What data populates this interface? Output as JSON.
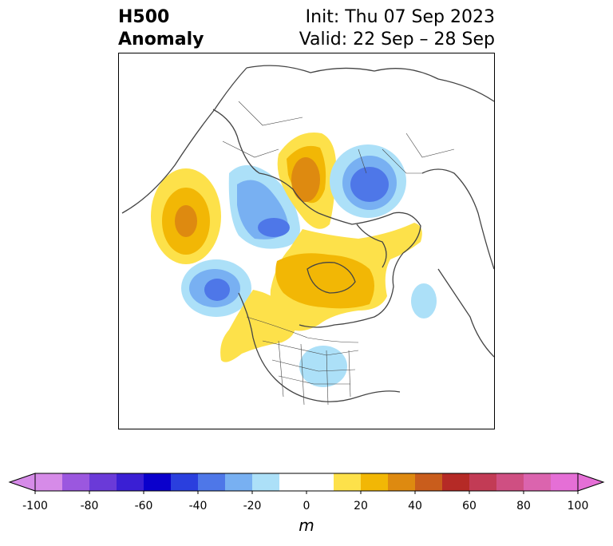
{
  "header": {
    "field_line1": "H500",
    "field_line2": "Anomaly",
    "init": "Init: Thu 07 Sep 2023",
    "valid": "Valid: 22 Sep – 28 Sep"
  },
  "colorbar": {
    "unit": "m",
    "ticks": [
      "-100",
      "-80",
      "-60",
      "-40",
      "-20",
      "0",
      "20",
      "40",
      "60",
      "80",
      "100"
    ],
    "bins": [
      {
        "from": -100,
        "to": -90,
        "color": "#d68be8"
      },
      {
        "from": -90,
        "to": -80,
        "color": "#9b57df"
      },
      {
        "from": -80,
        "to": -70,
        "color": "#6a3ad8"
      },
      {
        "from": -70,
        "to": -60,
        "color": "#3a1fd4"
      },
      {
        "from": -60,
        "to": -50,
        "color": "#0a00cc"
      },
      {
        "from": -50,
        "to": -40,
        "color": "#2a3fde"
      },
      {
        "from": -40,
        "to": -30,
        "color": "#4e77e8"
      },
      {
        "from": -30,
        "to": -20,
        "color": "#78b0f2"
      },
      {
        "from": -20,
        "to": -10,
        "color": "#ace0f8"
      },
      {
        "from": -10,
        "to": 0,
        "color": "#ffffff"
      },
      {
        "from": 0,
        "to": 10,
        "color": "#ffffff"
      },
      {
        "from": 10,
        "to": 20,
        "color": "#fde14a"
      },
      {
        "from": 20,
        "to": 30,
        "color": "#f2b705"
      },
      {
        "from": 30,
        "to": 40,
        "color": "#de8a10"
      },
      {
        "from": 40,
        "to": 50,
        "color": "#c95d1c"
      },
      {
        "from": 50,
        "to": 60,
        "color": "#b52a26"
      },
      {
        "from": 60,
        "to": 70,
        "color": "#c23b55"
      },
      {
        "from": 70,
        "to": 80,
        "color": "#cf4f82"
      },
      {
        "from": 80,
        "to": 90,
        "color": "#db64ae"
      },
      {
        "from": 90,
        "to": 100,
        "color": "#e56fd6"
      }
    ],
    "extend_min_color": "#d68be8",
    "extend_max_color": "#e56fd6"
  },
  "map": {
    "projection": "north-polar-stereographic",
    "anomaly_centers": [
      {
        "sign": "positive",
        "region": "North Pacific",
        "level": 30
      },
      {
        "sign": "negative",
        "region": "Gulf of Alaska",
        "level": -40
      },
      {
        "sign": "negative",
        "region": "Bering Sea / East Siberia",
        "level": -40
      },
      {
        "sign": "positive",
        "region": "Western Siberia",
        "level": 30
      },
      {
        "sign": "negative",
        "region": "Scandinavia / Northern Europe",
        "level": -50
      },
      {
        "sign": "positive",
        "region": "Canadian Arctic / Greenland",
        "level": 30
      },
      {
        "sign": "positive",
        "region": "Western North America",
        "level": 10
      },
      {
        "sign": "negative",
        "region": "Great Lakes",
        "level": -10
      },
      {
        "sign": "negative",
        "region": "North Atlantic",
        "level": -10
      }
    ]
  }
}
